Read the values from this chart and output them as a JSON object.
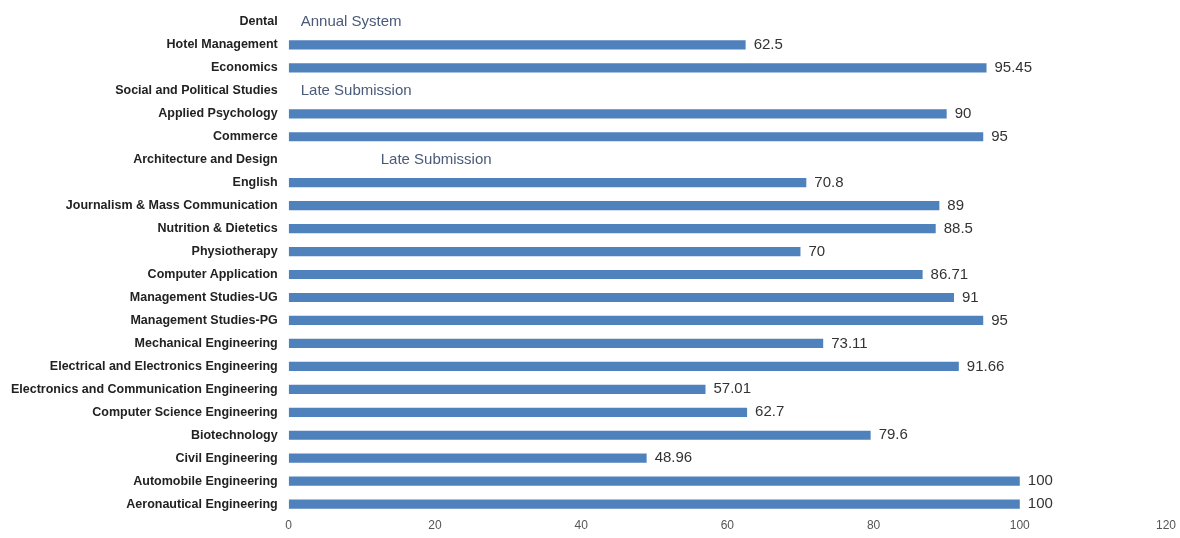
{
  "chart_data": {
    "type": "bar",
    "orientation": "horizontal",
    "categories": [
      "Dental",
      "Hotel Management",
      "Economics",
      "Social and Political Studies",
      "Applied Psychology",
      "Commerce",
      "Architecture and Design",
      "English",
      "Journalism & Mass Communication",
      "Nutrition & Dietetics",
      "Physiotherapy",
      "Computer Application",
      "Management Studies-UG",
      "Management Studies-PG",
      "Mechanical Engineering",
      "Electrical and Electronics Engineering",
      "Electronics and Communication Engineering",
      "Computer Science Engineering",
      "Biotechnology",
      "Civil Engineering",
      "Automobile Engineering",
      "Aeronautical Engineering"
    ],
    "values": [
      null,
      62.5,
      95.45,
      null,
      90,
      95,
      null,
      70.8,
      89,
      88.5,
      70,
      86.71,
      91,
      95,
      73.11,
      91.66,
      57.01,
      62.7,
      79.6,
      48.96,
      100,
      100
    ],
    "color": "#4f81bd",
    "xlim": [
      0,
      120
    ],
    "xticks": [
      0,
      20,
      40,
      60,
      80,
      100,
      120
    ],
    "grid": false,
    "legend": false,
    "data_labels": true,
    "annotations": [
      "Annual System",
      "Late Submission",
      "Late Submission"
    ]
  }
}
